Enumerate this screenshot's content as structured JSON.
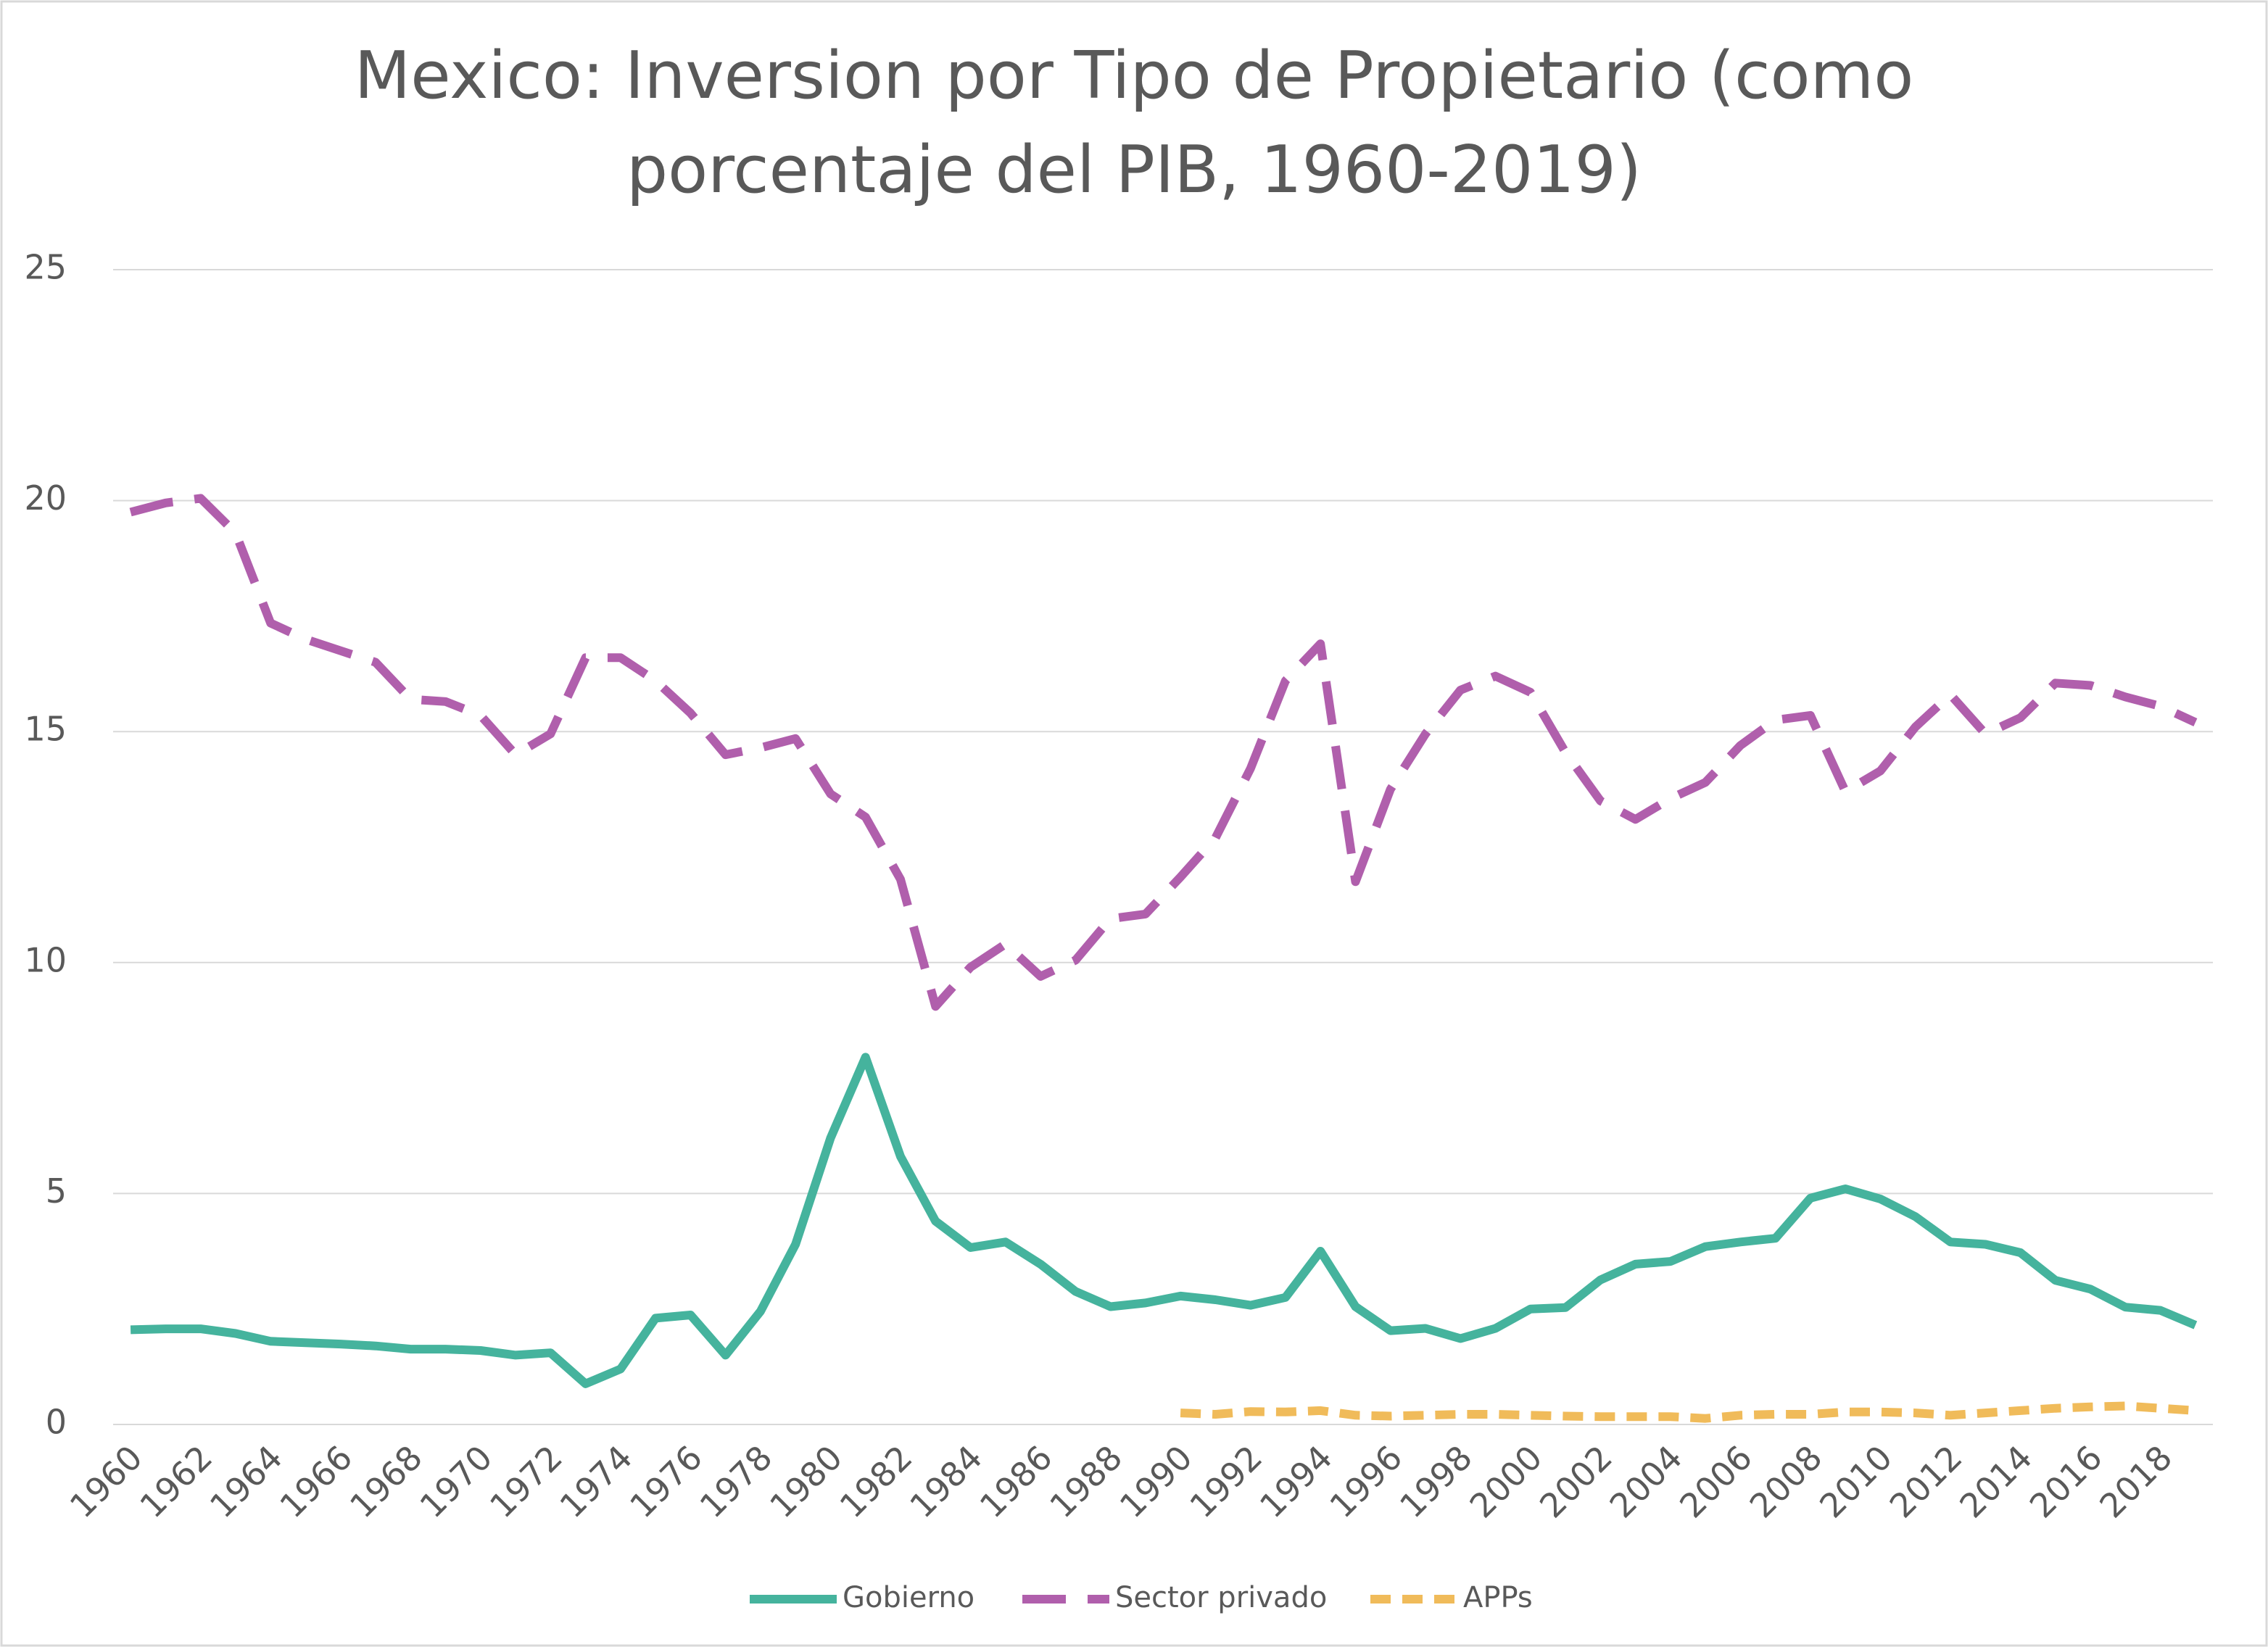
{
  "chart_data": {
    "type": "line",
    "title": "Mexico: Inversion por Tipo de Propietario (como porcentaje del PIB, 1960-2019)",
    "categories": [
      "1960",
      null,
      "1962",
      null,
      "1964",
      null,
      "1966",
      null,
      "1968",
      null,
      "1970",
      null,
      "1972",
      null,
      "1974",
      null,
      "1976",
      null,
      "1978",
      null,
      "1980",
      null,
      "1982",
      null,
      "1984",
      null,
      "1986",
      null,
      "1988",
      null,
      "1990",
      null,
      "1992",
      null,
      "1994",
      null,
      "1996",
      null,
      "1998",
      null,
      "2000",
      null,
      "2002",
      null,
      "2004",
      null,
      "2006",
      null,
      "2008",
      null,
      "2010",
      null,
      "2012",
      null,
      "2014",
      null,
      "2016",
      null,
      "2018",
      null
    ],
    "ylim": [
      0,
      25
    ],
    "yticks": [
      0,
      5,
      10,
      15,
      20,
      25
    ],
    "grid": true,
    "legend": "bottom",
    "series": [
      {
        "name": "Gobierno",
        "color": "#45b39d",
        "line_style": "solid",
        "values": [
          2.05,
          2.07,
          2.07,
          1.97,
          1.8,
          1.77,
          1.74,
          1.7,
          1.63,
          1.63,
          1.6,
          1.5,
          1.55,
          0.88,
          1.2,
          2.3,
          2.37,
          1.5,
          2.45,
          3.9,
          6.2,
          7.95,
          5.8,
          4.4,
          3.83,
          3.95,
          3.47,
          2.88,
          2.55,
          2.63,
          2.78,
          2.7,
          2.58,
          2.75,
          3.75,
          2.55,
          2.03,
          2.08,
          1.86,
          2.08,
          2.5,
          2.53,
          3.13,
          3.47,
          3.53,
          3.85,
          3.95,
          4.03,
          4.9,
          5.1,
          4.88,
          4.5,
          3.95,
          3.9,
          3.72,
          3.12,
          2.93,
          2.54,
          2.47,
          2.15
        ]
      },
      {
        "name": "Sector privado",
        "color": "#b05fac",
        "line_style": "dash",
        "values": [
          19.75,
          19.95,
          20.05,
          19.3,
          17.35,
          17.0,
          16.75,
          16.5,
          15.7,
          15.65,
          15.35,
          14.5,
          14.95,
          16.6,
          16.6,
          16.1,
          15.4,
          14.5,
          14.65,
          14.85,
          13.65,
          13.15,
          11.8,
          9.05,
          9.9,
          10.4,
          9.7,
          10.05,
          10.95,
          11.05,
          11.85,
          12.7,
          14.2,
          16.1,
          16.9,
          11.75,
          13.75,
          14.95,
          15.9,
          16.2,
          15.85,
          14.55,
          13.5,
          13.1,
          13.55,
          13.9,
          14.7,
          15.25,
          15.35,
          13.7,
          14.15,
          15.1,
          15.8,
          14.95,
          15.3,
          16.05,
          16.0,
          15.75,
          15.55,
          15.2
        ]
      },
      {
        "name": "APPs",
        "color": "#f0bb5a",
        "line_style": "short-dash",
        "values": [
          null,
          null,
          null,
          null,
          null,
          null,
          null,
          null,
          null,
          null,
          null,
          null,
          null,
          null,
          null,
          null,
          null,
          null,
          null,
          null,
          null,
          null,
          null,
          null,
          null,
          null,
          null,
          null,
          null,
          null,
          0.25,
          0.22,
          0.28,
          0.27,
          0.3,
          0.2,
          0.18,
          0.2,
          0.22,
          0.22,
          0.2,
          0.18,
          0.17,
          0.17,
          0.17,
          0.13,
          0.2,
          0.22,
          0.22,
          0.27,
          0.27,
          0.25,
          0.2,
          0.25,
          0.3,
          0.35,
          0.38,
          0.4,
          0.35,
          0.3
        ]
      }
    ]
  }
}
